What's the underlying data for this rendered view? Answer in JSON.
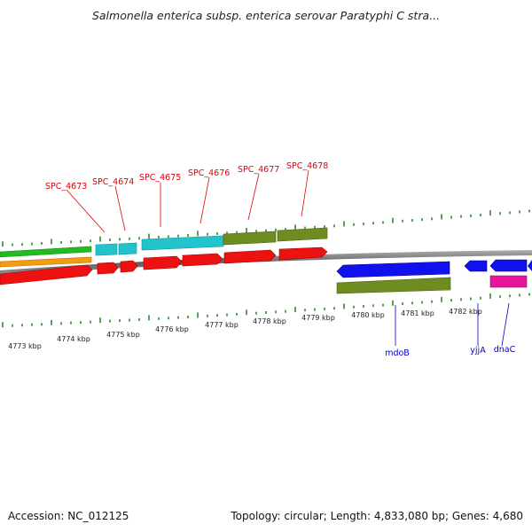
{
  "header": {
    "title": "Salmonella enterica subsp. enterica serovar Paratyphi C stra..."
  },
  "footer": {
    "accession": "Accession: NC_012125",
    "summary": "Topology: circular; Length: 4,833,080 bp; Genes: 4,680"
  },
  "map": {
    "position_labels": [
      "4773 kbp",
      "4774 kbp",
      "4775 kbp",
      "4776 kbp",
      "4777 kbp",
      "4778 kbp",
      "4779 kbp",
      "4780 kbp",
      "4781 kbp",
      "4782 kbp"
    ],
    "genes_above": [
      "SPC_4673",
      "SPC_4674",
      "SPC_4675",
      "SPC_4676",
      "SPC_4677",
      "SPC_4678"
    ],
    "genes_below": [
      "mdoB",
      "yjjA",
      "dnaC"
    ]
  },
  "colors": {
    "tick": "#2e8b2e",
    "backbone": "#7a7a7a",
    "cds_red": "#ee1111",
    "cds_blue": "#1111ee",
    "cyan": "#22c4cc",
    "olive": "#6e8c22",
    "green": "#22bb22",
    "orange": "#f39c12",
    "magenta": "#e8149a",
    "label_red": "#e0000a",
    "label_blue": "#0000cc"
  }
}
